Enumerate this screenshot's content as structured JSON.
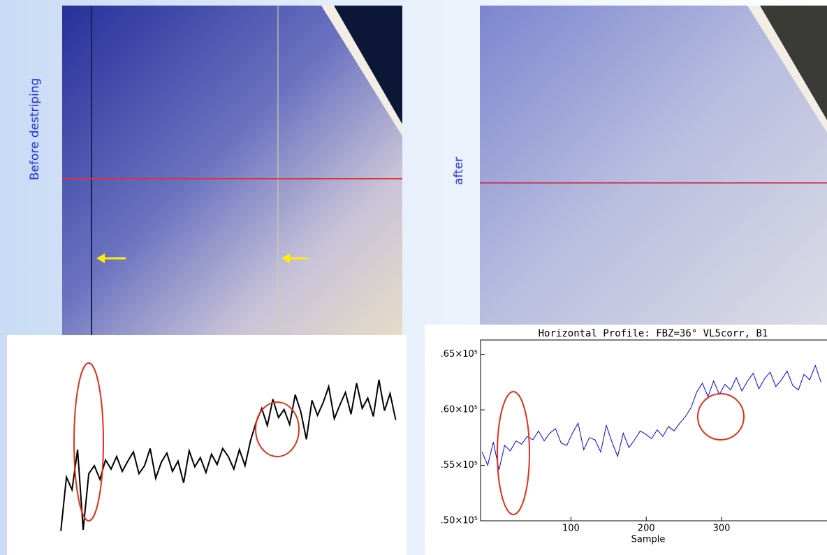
{
  "labels": {
    "before": "Before destriping",
    "after": "after"
  },
  "chart_data": [
    {
      "type": "line",
      "x": [
        -18,
        -10.5,
        -3,
        4.5,
        12,
        19.5,
        27,
        34.5,
        42,
        49.5,
        57,
        64.5,
        72,
        79.5,
        87,
        94.5,
        102,
        109.5,
        117,
        124.5,
        132,
        139.5,
        147,
        154.5,
        162,
        169.5,
        177,
        184.5,
        192,
        199.5,
        207,
        214.5,
        222,
        229.5,
        237,
        244.5,
        252,
        259.5,
        267,
        274.5,
        282,
        289.5,
        297,
        304.5,
        312,
        319.5,
        327,
        334.5,
        342,
        349.5,
        357,
        364.5,
        372,
        379.5,
        387,
        394.5,
        402,
        409.5,
        417,
        424.5,
        432
      ],
      "series": [
        {
          "color": "#000000",
          "values": [
            51700,
            56400,
            55300,
            58800,
            51800,
            56700,
            57400,
            56200,
            57900,
            57100,
            58200,
            56900,
            57800,
            58600,
            56700,
            57400,
            58900,
            56300,
            57700,
            58500,
            56900,
            57800,
            55900,
            58700,
            57300,
            58100,
            56800,
            58400,
            57500,
            58900,
            58200,
            57100,
            58800,
            57400,
            59600,
            61200,
            62400,
            60900,
            63200,
            61600,
            62300,
            61000,
            63600,
            62100,
            59700,
            63100,
            61800,
            62900,
            64300,
            61500,
            62700,
            63800,
            61900,
            64600,
            62400,
            63300,
            61700,
            64900,
            62200,
            63700,
            61400
          ]
        }
      ],
      "xlim": [
        -20,
        440
      ],
      "ylim": [
        49600,
        68800
      ]
    },
    {
      "type": "line",
      "title": "Horizontal Profile: FBZ=36°  VL5corr, B1",
      "x_label": "Sample",
      "x": [
        -18,
        -10.5,
        -3,
        4.5,
        12,
        19.5,
        27,
        34.5,
        42,
        49.5,
        57,
        64.5,
        72,
        79.5,
        87,
        94.5,
        102,
        109.5,
        117,
        124.5,
        132,
        139.5,
        147,
        154.5,
        162,
        169.5,
        177,
        184.5,
        192,
        199.5,
        207,
        214.5,
        222,
        229.5,
        237,
        244.5,
        252,
        259.5,
        267,
        274.5,
        282,
        289.5,
        297,
        304.5,
        312,
        319.5,
        327,
        334.5,
        342,
        349.5,
        357,
        364.5,
        372,
        379.5,
        387,
        394.5,
        402,
        409.5,
        417,
        424.5,
        432
      ],
      "series": [
        {
          "color": "#0000ee",
          "values": [
            56200,
            55000,
            57100,
            54600,
            56800,
            56300,
            57200,
            56900,
            57600,
            57300,
            58100,
            57200,
            57900,
            58300,
            57000,
            56800,
            57900,
            58800,
            56400,
            57500,
            57300,
            56200,
            58600,
            57100,
            55800,
            57900,
            56600,
            57300,
            58100,
            57800,
            57400,
            58200,
            57600,
            58500,
            58100,
            58800,
            59400,
            60200,
            61600,
            62400,
            61200,
            62600,
            61400,
            62300,
            61800,
            62900,
            61700,
            62600,
            63300,
            61900,
            62800,
            63400,
            62100,
            62700,
            63500,
            62200,
            61800,
            63200,
            62700,
            64000,
            62500
          ]
        }
      ],
      "xlim": [
        -20,
        440
      ],
      "xticks": [
        100,
        200,
        300
      ],
      "ylim": [
        50000,
        66300
      ],
      "yticks": [
        {
          "value": 50000,
          "label": ".50×10⁵"
        },
        {
          "value": 55000,
          "label": ".55×10⁵"
        },
        {
          "value": 60000,
          "label": ".60×10⁵"
        },
        {
          "value": 65000,
          "label": ".65×10⁵"
        }
      ]
    }
  ]
}
